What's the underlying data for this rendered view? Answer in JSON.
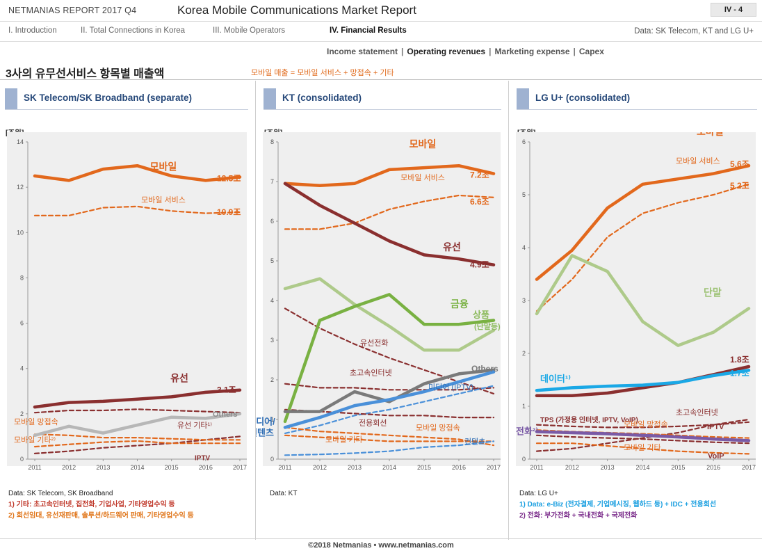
{
  "header": {
    "brand": "NETMANIAS REPORT 2017 Q4",
    "title": "Korea Mobile Communications Market Report",
    "page": "IV - 4"
  },
  "nav": {
    "items": [
      "I. Introduction",
      "II. Total Connections in Korea",
      "III. Mobile Operators",
      "IV. Financial Results"
    ],
    "active_index": 3,
    "note": "Data: SK Telecom, KT and LG U+"
  },
  "subnav": {
    "items": [
      "Income statement",
      "Operating revenues",
      "Marketing expense",
      "Capex"
    ],
    "selected_index": 1
  },
  "page_title": "3사의 유무선서비스 항목별 매출액",
  "formula": "모바일 매출 = 모바일 서비스 + 망접속 + 기타",
  "footer": "©2018 Netmanias • www.netmanias.com",
  "colors": {
    "mobile": "#e2681c",
    "wired": "#8a2f2f",
    "green": "#79b142",
    "lightgreen": "#aeca8a",
    "blue": "#4a90d9",
    "cyan": "#1aa8e6",
    "gray": "#b7b7b7",
    "darkgray": "#7a7a7a",
    "purple": "#7a5aa6",
    "header_bar": "#9fb2d1",
    "header_text": "#27497a"
  },
  "notes": {
    "skt": {
      "source": "Data: SK Telecom, SK Broadband",
      "n1_label": "1) 기타:",
      "n1_text": "초고속인터넷, 집전화, 기업사업, 기타영업수익 등",
      "n2_label": "2)",
      "n2_text": "회선임대, 유선재판매, 솔루션/하드웨어 판매, 기타영업수익 등"
    },
    "kt": {
      "source": "Data: KT"
    },
    "lgu": {
      "source": "Data: LG U+",
      "n1_text": "1) Data: e-Biz (전자결제, 기업메시징, 웹하드 등) + IDC + 전용회선",
      "n2_text": "2) 전화: 부가전화 + 국내전화 + 국제전화"
    }
  },
  "chart_data": [
    {
      "type": "line",
      "title": "SK Telecom/SK Broadband (separate)",
      "unit_label": "[조원]",
      "x": [
        "2011",
        "2012",
        "2013",
        "2014",
        "2015",
        "2016",
        "2017"
      ],
      "ylim": [
        0,
        14
      ],
      "yticks": [
        0,
        2,
        4,
        6,
        8,
        10,
        12,
        14
      ],
      "grid": false,
      "series": [
        {
          "name": "모바일",
          "end_label": "12.5조",
          "values": [
            12.5,
            12.3,
            12.8,
            12.95,
            12.5,
            12.3,
            12.45
          ],
          "color": "#e2681c",
          "dashed": false
        },
        {
          "name": "모바일 서비스",
          "end_label": "10.9조",
          "values": [
            10.75,
            10.75,
            11.1,
            11.15,
            10.95,
            10.85,
            10.9
          ],
          "color": "#e2681c",
          "dashed": true
        },
        {
          "name": "유선",
          "end_label": "3.1조",
          "values": [
            2.3,
            2.5,
            2.55,
            2.65,
            2.75,
            2.95,
            3.05
          ],
          "color": "#8a2f2f",
          "dashed": false
        },
        {
          "name": "유선 기타¹⁾",
          "end_label": "",
          "values": [
            2.05,
            2.15,
            2.15,
            2.2,
            2.15,
            2.1,
            2.05
          ],
          "color": "#8a2f2f",
          "dashed": true
        },
        {
          "name": "Others",
          "end_label": "",
          "values": [
            1.05,
            1.45,
            1.15,
            1.5,
            1.85,
            1.8,
            2.0
          ],
          "color": "#b7b7b7",
          "dashed": false
        },
        {
          "name": "IPTV",
          "end_label": "",
          "values": [
            0.25,
            0.35,
            0.5,
            0.6,
            0.7,
            0.85,
            1.0
          ],
          "color": "#8a2f2f",
          "dashed": true
        },
        {
          "name": "모바일 망접속",
          "end_label": "",
          "values": [
            1.1,
            1.05,
            0.95,
            0.95,
            0.9,
            0.85,
            0.85
          ],
          "color": "#e2681c",
          "dashed": true
        },
        {
          "name": "모바일 기타²⁾",
          "end_label": "",
          "values": [
            0.55,
            0.65,
            0.75,
            0.8,
            0.7,
            0.7,
            0.7
          ],
          "color": "#e2681c",
          "dashed": true
        }
      ]
    },
    {
      "type": "line",
      "title": "KT (consolidated)",
      "unit_label": "[조원]",
      "x": [
        "2011",
        "2012",
        "2013",
        "2014",
        "2015",
        "2016",
        "2017"
      ],
      "ylim": [
        0,
        8
      ],
      "yticks": [
        0,
        1,
        2,
        3,
        4,
        5,
        6,
        7,
        8
      ],
      "grid": false,
      "series": [
        {
          "name": "모바일",
          "end_label": "7.2조",
          "values": [
            6.95,
            6.9,
            6.95,
            7.3,
            7.35,
            7.4,
            7.2
          ],
          "color": "#e2681c",
          "dashed": false
        },
        {
          "name": "모바일 서비스",
          "end_label": "6.6조",
          "values": [
            5.8,
            5.8,
            5.95,
            6.3,
            6.5,
            6.65,
            6.6
          ],
          "color": "#e2681c",
          "dashed": true
        },
        {
          "name": "유선",
          "end_label": "4.9조",
          "values": [
            6.95,
            6.4,
            5.95,
            5.5,
            5.15,
            5.05,
            4.9
          ],
          "color": "#8a2f2f",
          "dashed": false
        },
        {
          "name": "상품 (단말등)",
          "end_label": "",
          "values": [
            4.3,
            4.55,
            3.9,
            3.35,
            2.75,
            2.75,
            3.25
          ],
          "color": "#aeca8a",
          "dashed": false
        },
        {
          "name": "금융",
          "end_label": "",
          "values": [
            0.95,
            3.5,
            3.85,
            4.15,
            3.4,
            3.4,
            3.5
          ],
          "color": "#79b142",
          "dashed": false
        },
        {
          "name": "유선전화",
          "end_label": "",
          "values": [
            3.8,
            3.3,
            2.9,
            2.55,
            2.25,
            1.95,
            1.65
          ],
          "color": "#8a2f2f",
          "dashed": true
        },
        {
          "name": "초고속인터넷",
          "end_label": "",
          "values": [
            1.9,
            1.8,
            1.8,
            1.75,
            1.75,
            1.75,
            1.8
          ],
          "color": "#8a2f2f",
          "dashed": true
        },
        {
          "name": "Others",
          "end_label": "",
          "values": [
            1.2,
            1.2,
            1.7,
            1.45,
            1.9,
            2.15,
            2.25
          ],
          "color": "#7a7a7a",
          "dashed": false
        },
        {
          "name": "미디어/컨텐츠",
          "end_label": "",
          "values": [
            0.8,
            1.05,
            1.35,
            1.5,
            1.7,
            1.95,
            2.2
          ],
          "color": "#4a90d9",
          "dashed": false
        },
        {
          "name": "미디어 (IPTV)",
          "end_label": "",
          "values": [
            0.65,
            0.85,
            1.1,
            1.25,
            1.45,
            1.65,
            1.85
          ],
          "color": "#4a90d9",
          "dashed": true
        },
        {
          "name": "전용회선",
          "end_label": "",
          "values": [
            1.25,
            1.2,
            1.15,
            1.1,
            1.1,
            1.05,
            1.05
          ],
          "color": "#8a2f2f",
          "dashed": true
        },
        {
          "name": "모바일 망접속",
          "end_label": "",
          "values": [
            0.8,
            0.7,
            0.65,
            0.6,
            0.55,
            0.5,
            0.35
          ],
          "color": "#e2681c",
          "dashed": true
        },
        {
          "name": "모바일 기타",
          "end_label": "",
          "values": [
            0.6,
            0.55,
            0.5,
            0.45,
            0.45,
            0.45,
            0.45
          ],
          "color": "#e2681c",
          "dashed": true
        },
        {
          "name": "컨텐츠",
          "end_label": "",
          "values": [
            0.1,
            0.12,
            0.15,
            0.2,
            0.3,
            0.35,
            0.45
          ],
          "color": "#4a90d9",
          "dashed": true
        }
      ]
    },
    {
      "type": "line",
      "title": "LG U+  (consolidated)",
      "unit_label": "[조원]",
      "x": [
        "2011",
        "2012",
        "2013",
        "2014",
        "2015",
        "2016",
        "2017"
      ],
      "ylim": [
        0,
        6
      ],
      "yticks": [
        0,
        1,
        2,
        3,
        4,
        5,
        6
      ],
      "grid": false,
      "series": [
        {
          "name": "모바일",
          "end_label": "5.6조",
          "values": [
            3.4,
            3.95,
            4.75,
            5.2,
            5.3,
            5.4,
            5.55
          ],
          "color": "#e2681c",
          "dashed": false
        },
        {
          "name": "모바일 서비스",
          "end_label": "5.2조",
          "values": [
            2.8,
            3.4,
            4.2,
            4.65,
            4.85,
            5.0,
            5.2
          ],
          "color": "#e2681c",
          "dashed": true
        },
        {
          "name": "단말",
          "end_label": "",
          "values": [
            2.75,
            3.85,
            3.55,
            2.6,
            2.15,
            2.4,
            2.85
          ],
          "color": "#aeca8a",
          "dashed": false
        },
        {
          "name": "TPS (가정용 인터넷, IPTV, VoIP)",
          "end_label": "1.8조",
          "values": [
            1.2,
            1.2,
            1.25,
            1.35,
            1.45,
            1.6,
            1.75
          ],
          "color": "#8a2f2f",
          "dashed": false
        },
        {
          "name": "데이터¹⁾",
          "end_label": "1.7조",
          "values": [
            1.3,
            1.35,
            1.38,
            1.4,
            1.45,
            1.58,
            1.68
          ],
          "color": "#1aa8e6",
          "dashed": false
        },
        {
          "name": "초고속인터넷",
          "end_label": "",
          "values": [
            0.65,
            0.62,
            0.6,
            0.6,
            0.62,
            0.65,
            0.7
          ],
          "color": "#8a2f2f",
          "dashed": true
        },
        {
          "name": "IPTV",
          "end_label": "",
          "values": [
            0.15,
            0.2,
            0.3,
            0.4,
            0.5,
            0.65,
            0.75
          ],
          "color": "#8a2f2f",
          "dashed": true
        },
        {
          "name": "전화²⁾",
          "end_label": "",
          "values": [
            0.52,
            0.5,
            0.48,
            0.45,
            0.42,
            0.38,
            0.35
          ],
          "color": "#7a5aa6",
          "dashed": false
        },
        {
          "name": "모바일 망접속",
          "end_label": "",
          "values": [
            0.55,
            0.52,
            0.5,
            0.48,
            0.45,
            0.42,
            0.4
          ],
          "color": "#e2681c",
          "dashed": true
        },
        {
          "name": "모바일 기타",
          "end_label": "",
          "values": [
            0.3,
            0.3,
            0.25,
            0.2,
            0.15,
            0.12,
            0.1
          ],
          "color": "#e2681c",
          "dashed": true
        },
        {
          "name": "VoIP",
          "end_label": "",
          "values": [
            0.45,
            0.42,
            0.4,
            0.38,
            0.35,
            0.32,
            0.3
          ],
          "color": "#8a2f2f",
          "dashed": true
        }
      ]
    }
  ]
}
